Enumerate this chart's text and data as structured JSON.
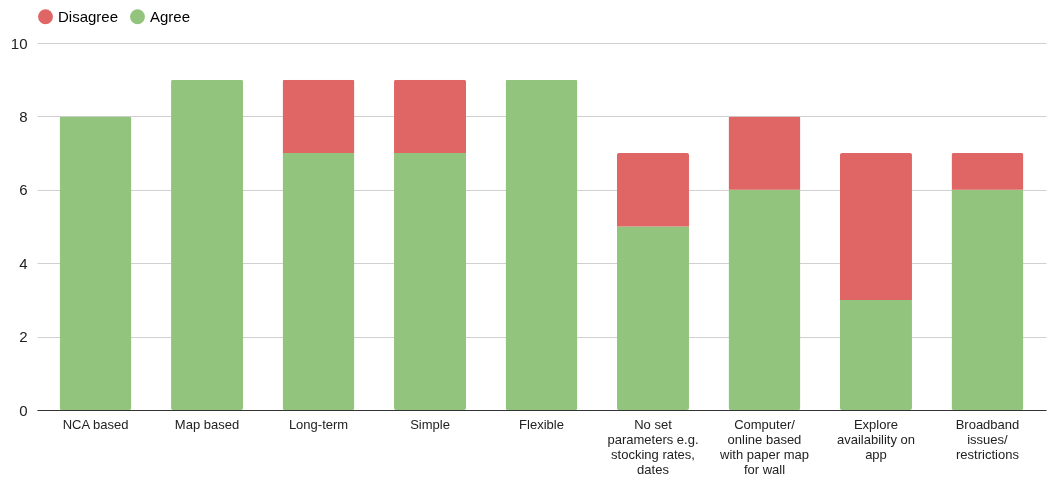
{
  "chart_data": {
    "type": "bar",
    "stacked": true,
    "categories": [
      "NCA based",
      "Map based",
      "Long-term",
      "Simple",
      "Flexible",
      "No set parameters e.g. stocking rates, dates",
      "Computer/ online based with paper map for wall",
      "Explore availability on app",
      "Broadband issues/ restrictions"
    ],
    "series": [
      {
        "name": "Agree",
        "color": "#93c47d",
        "values": [
          8,
          9,
          7,
          7,
          9,
          5,
          6,
          3,
          6
        ]
      },
      {
        "name": "Disagree",
        "color": "#e06666",
        "values": [
          0,
          0,
          2,
          2,
          0,
          2,
          2,
          4,
          1
        ]
      }
    ],
    "ylim": [
      0,
      10
    ],
    "yticks": [
      0,
      2,
      4,
      6,
      8,
      10
    ],
    "grid": "y",
    "legend": "top"
  }
}
